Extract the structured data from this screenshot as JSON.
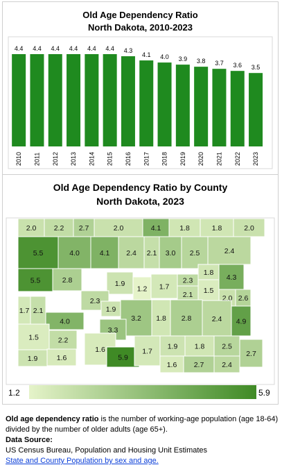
{
  "bar_chart": {
    "title_line1": "Old Age Dependency Ratio",
    "title_line2": "North Dakota, 2010-2023"
  },
  "map_chart": {
    "title_line1": "Old Age Dependency Ratio by County",
    "title_line2": "North Dakota, 2023",
    "legend": {
      "min_label": "1.2",
      "max_label": "5.9"
    }
  },
  "chart_data": [
    {
      "type": "bar",
      "title": "Old Age Dependency Ratio North Dakota, 2010-2023",
      "categories": [
        "2010",
        "2011",
        "2012",
        "2013",
        "2014",
        "2015",
        "2016",
        "2017",
        "2018",
        "2019",
        "2020",
        "2021",
        "2022",
        "2023"
      ],
      "values": [
        4.4,
        4.4,
        4.4,
        4.4,
        4.4,
        4.4,
        4.3,
        4.1,
        4.0,
        3.9,
        3.8,
        3.7,
        3.6,
        3.5
      ],
      "value_labels": [
        "4.4",
        "4.4",
        "4.4",
        "4.4",
        "4.4",
        "4.4",
        "4.3",
        "4.1",
        "4.0",
        "3.9",
        "3.8",
        "3.7",
        "3.6",
        "3.5"
      ],
      "grid": false,
      "color": "#1f8a1f"
    },
    {
      "type": "heatmap",
      "title": "Old Age Dependency Ratio by County North Dakota, 2023",
      "values": [
        2.0,
        2.2,
        2.7,
        2.0,
        4.1,
        1.8,
        1.8,
        2.0,
        5.5,
        4.0,
        4.1,
        2.4,
        2.1,
        3.0,
        2.5,
        2.4,
        1.8,
        4.3,
        5.5,
        2.8,
        1.9,
        1.2,
        1.7,
        2.3,
        2.1,
        1.5,
        2.0,
        2.6,
        2.3,
        1.9,
        1.7,
        2.1,
        4.0,
        3.2,
        1.8,
        2.8,
        2.4,
        4.9,
        3.3,
        1.5,
        2.2,
        1.6,
        5.9,
        1.7,
        1.9,
        1.8,
        2.5,
        2.7,
        1.9,
        1.6,
        1.6,
        2.7,
        2.4
      ],
      "value_labels": [
        "2.0",
        "2.2",
        "2.7",
        "2.0",
        "4.1",
        "1.8",
        "1.8",
        "2.0",
        "5.5",
        "4.0",
        "4.1",
        "2.4",
        "2.1",
        "3.0",
        "2.5",
        "2.4",
        "1.8",
        "4.3",
        "5.5",
        "2.8",
        "1.9",
        "1.2",
        "1.7",
        "2.3",
        "2.1",
        "1.5",
        "2.0",
        "2.6",
        "2.3",
        "1.9",
        "1.7",
        "2.1",
        "4.0",
        "3.2",
        "1.8",
        "2.8",
        "2.4",
        "4.9",
        "3.3",
        "1.5",
        "2.2",
        "1.6",
        "5.9",
        "1.7",
        "1.9",
        "1.8",
        "2.5",
        "2.7",
        "1.9",
        "1.6",
        "1.6",
        "2.7",
        "2.4"
      ],
      "color_scale": {
        "min": 1.2,
        "max": 5.9,
        "min_color": "#e5f3c9",
        "max_color": "#3f8a25"
      }
    }
  ],
  "footer": {
    "definition_bold": "Old age dependency ratio",
    "definition_rest": " is the number of working-age population (age 18-64)",
    "definition_line2": "divided by the number of older adults (age 65+).",
    "source_heading": "Data Source:",
    "source_text": "US Census Bureau, Population and Housing Unit Estimates",
    "source_link": "State and County Population by sex and age."
  }
}
